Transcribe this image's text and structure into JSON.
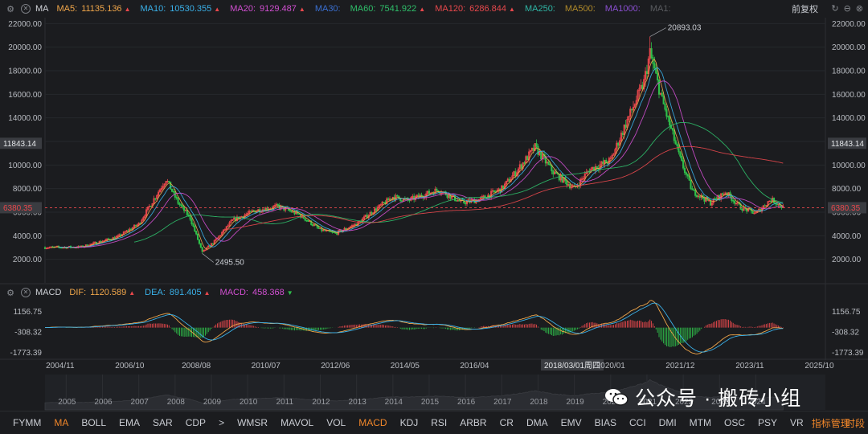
{
  "ma_bar": {
    "name": "MA",
    "items": [
      {
        "label": "MA5:",
        "value": "11135.136",
        "color": "#f0a64a",
        "dir": "up"
      },
      {
        "label": "MA10:",
        "value": "10530.355",
        "color": "#3ab0e8",
        "dir": "up"
      },
      {
        "label": "MA20:",
        "value": "9129.487",
        "color": "#d14fd1",
        "dir": "up"
      },
      {
        "label": "MA30:",
        "value": "",
        "color": "#3a6fd1",
        "dir": ""
      },
      {
        "label": "MA60:",
        "value": "7541.922",
        "color": "#2fbf6a",
        "dir": "up"
      },
      {
        "label": "MA120:",
        "value": "6286.844",
        "color": "#e8484c",
        "dir": "up"
      },
      {
        "label": "MA250:",
        "value": "",
        "color": "#2fb5a5",
        "dir": ""
      },
      {
        "label": "MA500:",
        "value": "",
        "color": "#b08a2a",
        "dir": ""
      },
      {
        "label": "MA1000:",
        "value": "",
        "color": "#8a4fd1",
        "dir": ""
      },
      {
        "label": "MA1:",
        "value": "",
        "color": "#5a5c60",
        "dir": ""
      }
    ],
    "fq_label": "前复权"
  },
  "macd_bar": {
    "name": "MACD",
    "items": [
      {
        "label": "DIF:",
        "value": "1120.589",
        "color": "#f0a64a",
        "dir": "up"
      },
      {
        "label": "DEA:",
        "value": "891.405",
        "color": "#3ab0e8",
        "dir": "up"
      },
      {
        "label": "MACD:",
        "value": "458.368",
        "color": "#d14fd1",
        "dir": "down"
      }
    ]
  },
  "chart_data": [
    {
      "type": "candlestick",
      "ylim": [
        0,
        22500
      ],
      "y_ticks": [
        "22000.00",
        "20000.00",
        "18000.00",
        "16000.00",
        "14000.00",
        "12000.00",
        "10000.00",
        "8000.00",
        "6000.00",
        "4000.00",
        "2000.00"
      ],
      "y_tick_values": [
        22000,
        20000,
        18000,
        16000,
        14000,
        12000,
        10000,
        8000,
        6000,
        4000,
        2000
      ],
      "current_price": "6380.35",
      "crosshair_price": "11843.14",
      "annotations": [
        {
          "label": "20893.03",
          "x": "2021/02",
          "y": 20893.03
        },
        {
          "label": "2495.50",
          "x": "2008/10",
          "y": 2495.5
        }
      ],
      "x_labels": [
        "2004/11",
        "2006/10",
        "2008/08",
        "2010/07",
        "2012/06",
        "2014/05",
        "2016/04",
        "2018/03/01周四",
        "2020/01",
        "2021/12",
        "2023/11",
        "2025/10"
      ],
      "year_labels": [
        "2005",
        "2006",
        "2007",
        "2008",
        "2009",
        "2010",
        "2011",
        "2012",
        "2013",
        "2014",
        "2015",
        "2016",
        "2017",
        "2018",
        "2019",
        "2020",
        "2021",
        "2022",
        "2023",
        "2024"
      ],
      "price_path_keypoints": [
        [
          "2004/06",
          3000
        ],
        [
          "2005/06",
          3050
        ],
        [
          "2006/06",
          3900
        ],
        [
          "2007/01",
          5000
        ],
        [
          "2007/10",
          8800
        ],
        [
          "2008/02",
          6800
        ],
        [
          "2008/06",
          5500
        ],
        [
          "2008/10",
          2600
        ],
        [
          "2009/02",
          3500
        ],
        [
          "2009/08",
          5300
        ],
        [
          "2010/03",
          6100
        ],
        [
          "2010/11",
          6500
        ],
        [
          "2011/06",
          5800
        ],
        [
          "2012/01",
          4500
        ],
        [
          "2012/06",
          4200
        ],
        [
          "2013/01",
          5000
        ],
        [
          "2013/06",
          6000
        ],
        [
          "2014/01",
          7300
        ],
        [
          "2014/06",
          7000
        ],
        [
          "2015/04",
          7900
        ],
        [
          "2015/12",
          6800
        ],
        [
          "2016/06",
          7100
        ],
        [
          "2017/01",
          8000
        ],
        [
          "2017/06",
          9500
        ],
        [
          "2017/12",
          11500
        ],
        [
          "2018/06",
          9400
        ],
        [
          "2019/01",
          8000
        ],
        [
          "2019/06",
          9600
        ],
        [
          "2020/01",
          10400
        ],
        [
          "2020/06",
          13500
        ],
        [
          "2020/12",
          17000
        ],
        [
          "2021/02",
          19500
        ],
        [
          "2021/06",
          15500
        ],
        [
          "2021/12",
          10500
        ],
        [
          "2022/04",
          7800
        ],
        [
          "2022/10",
          6800
        ],
        [
          "2023/03",
          7700
        ],
        [
          "2023/08",
          6400
        ],
        [
          "2024/01",
          5900
        ],
        [
          "2024/06",
          7100
        ],
        [
          "2024/10",
          6400
        ]
      ]
    },
    {
      "type": "macd",
      "ylim": [
        -2200,
        1700
      ],
      "y_ticks": [
        "1156.75",
        "-308.32",
        "-1773.39"
      ],
      "y_tick_values": [
        1156.75,
        -308.32,
        -1773.39
      ]
    }
  ],
  "bottom_tabs": [
    "FYMM",
    "MA",
    "BOLL",
    "EMA",
    "SAR",
    "CDP",
    ">",
    "WMSR",
    "MAVOL",
    "VOL",
    "MACD",
    "KDJ",
    "RSI",
    "ARBR",
    "CR",
    "DMA",
    "EMV",
    "BIAS",
    "CCI",
    "DMI",
    "MTM",
    "OSC",
    "PSY",
    "VR"
  ],
  "active_tabs": [
    "MA",
    "MACD"
  ],
  "bottom_manager": "指标管理",
  "bottom_time": "时段",
  "watermark": "公众号 · 搬砖小组"
}
